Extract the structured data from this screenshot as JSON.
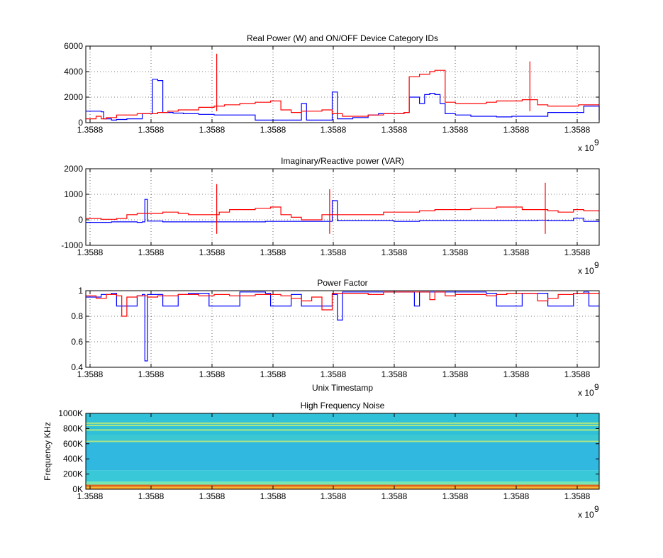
{
  "figure": {
    "xaxis_multiplier_base": "x 10",
    "xaxis_multiplier_exp": "9"
  },
  "colors": {
    "series_a": "#0000ff",
    "series_b": "#ff0000",
    "grid": "#000000",
    "axes": "#000000"
  },
  "chart_data": [
    {
      "type": "line",
      "title": "Real Power (W) and ON/OFF Device Category IDs",
      "xlabel": "",
      "ylabel": "",
      "xticks": [
        "1.3588",
        "1.3588",
        "1.3588",
        "1.3588",
        "1.3588",
        "1.3588",
        "1.3588",
        "1.3588",
        "1.3588"
      ],
      "yticks": [
        "0",
        "2000",
        "4000",
        "6000"
      ],
      "ylim": [
        0,
        6000
      ],
      "xlim": [
        0,
        100
      ],
      "grid": true,
      "series": [
        {
          "color": "#0000ff",
          "x": [
            0,
            3,
            3.5,
            5,
            6,
            8,
            10,
            11,
            12,
            13,
            14,
            15,
            17,
            18,
            19,
            20,
            22,
            25,
            28,
            30,
            33,
            36,
            38,
            40,
            42,
            43,
            44,
            47,
            48,
            49,
            50,
            52,
            55,
            57,
            60,
            62,
            63,
            64,
            65,
            66,
            67,
            68,
            69,
            70,
            72,
            75,
            80,
            83,
            85,
            88,
            90,
            93,
            95,
            97,
            97.5,
            99,
            100
          ],
          "y": [
            900,
            850,
            300,
            200,
            250,
            300,
            300,
            700,
            700,
            3400,
            3300,
            800,
            750,
            750,
            700,
            700,
            650,
            600,
            600,
            600,
            200,
            200,
            200,
            200,
            1500,
            200,
            200,
            200,
            2400,
            300,
            300,
            400,
            600,
            700,
            700,
            800,
            2000,
            2000,
            1500,
            2200,
            2300,
            2200,
            1500,
            700,
            600,
            500,
            450,
            500,
            500,
            500,
            800,
            800,
            800,
            1300,
            1300,
            1300,
            200
          ]
        },
        {
          "color": "#ff0000",
          "x": [
            0,
            1,
            2,
            3,
            4,
            6,
            8,
            10,
            12,
            14,
            16,
            18,
            20,
            22,
            25,
            27,
            30,
            33,
            36,
            38,
            40,
            42,
            44,
            46,
            48,
            50,
            52,
            55,
            58,
            60,
            62,
            63,
            65,
            67,
            68,
            70,
            72,
            75,
            78,
            80,
            82,
            85,
            88,
            90,
            92,
            94,
            96,
            98,
            100
          ],
          "y": [
            300,
            300,
            500,
            300,
            400,
            600,
            600,
            700,
            700,
            800,
            900,
            1000,
            1000,
            1200,
            1300,
            1400,
            1500,
            1600,
            1700,
            1000,
            800,
            900,
            900,
            1000,
            700,
            500,
            500,
            600,
            700,
            700,
            800,
            3600,
            3800,
            4000,
            4100,
            1600,
            1500,
            1500,
            1600,
            1700,
            1700,
            1800,
            1400,
            1300,
            1300,
            1300,
            1400,
            1400,
            1400
          ]
        }
      ],
      "spikes": [
        {
          "series": 1,
          "x": 25.5,
          "y": 5400
        },
        {
          "series": 1,
          "x": 86.5,
          "y": 4800
        }
      ]
    },
    {
      "type": "line",
      "title": "Imaginary/Reactive power (VAR)",
      "xlabel": "",
      "ylabel": "",
      "xticks": [
        "1.3588",
        "1.3588",
        "1.3588",
        "1.3588",
        "1.3588",
        "1.3588",
        "1.3588",
        "1.3588",
        "1.3588"
      ],
      "yticks": [
        "-1000",
        "0",
        "1000",
        "2000"
      ],
      "ylim": [
        -1000,
        2000
      ],
      "xlim": [
        0,
        100
      ],
      "grid": true,
      "series": [
        {
          "color": "#0000ff",
          "x": [
            0,
            5,
            10,
            11,
            11.5,
            12,
            15,
            20,
            25,
            30,
            35,
            40,
            45,
            47,
            48,
            49,
            50,
            55,
            60,
            65,
            70,
            75,
            80,
            85,
            88,
            90,
            95,
            97,
            100
          ],
          "y": [
            -100,
            -80,
            -100,
            -80,
            800,
            -50,
            -80,
            -80,
            -80,
            -80,
            -60,
            -60,
            -60,
            -60,
            750,
            -40,
            -40,
            -40,
            -60,
            -40,
            -40,
            -40,
            -40,
            -40,
            -20,
            -40,
            60,
            -60,
            -80
          ]
        },
        {
          "color": "#ff0000",
          "x": [
            0,
            3,
            6,
            8,
            10,
            12,
            15,
            18,
            20,
            22,
            24,
            26,
            28,
            30,
            33,
            36,
            38,
            40,
            42,
            44,
            46,
            48,
            50,
            52,
            55,
            58,
            60,
            62,
            65,
            68,
            70,
            72,
            75,
            78,
            80,
            82,
            85,
            88,
            90,
            92,
            95,
            97,
            100
          ],
          "y": [
            50,
            20,
            50,
            200,
            250,
            250,
            300,
            250,
            200,
            200,
            200,
            300,
            400,
            400,
            450,
            500,
            200,
            100,
            0,
            0,
            200,
            200,
            200,
            200,
            200,
            300,
            300,
            300,
            350,
            400,
            400,
            400,
            450,
            450,
            500,
            500,
            400,
            400,
            350,
            300,
            400,
            350,
            350
          ]
        }
      ],
      "spikes": [
        {
          "series": 1,
          "x": 25.5,
          "y": 1400
        },
        {
          "series": 1,
          "x": 47.5,
          "y": 1200
        },
        {
          "series": 1,
          "x": 89.5,
          "y": 1450
        }
      ]
    },
    {
      "type": "line",
      "title": "Power Factor",
      "xlabel": "Unix Timestamp",
      "ylabel": "",
      "xticks": [
        "1.3588",
        "1.3588",
        "1.3588",
        "1.3588",
        "1.3588",
        "1.3588",
        "1.3588",
        "1.3588",
        "1.3588"
      ],
      "yticks": [
        "0.4",
        "0.6",
        "0.8",
        "1"
      ],
      "ylim": [
        0.4,
        1.0
      ],
      "xlim": [
        0,
        100
      ],
      "grid": true,
      "series": [
        {
          "color": "#0000ff",
          "x": [
            0,
            3,
            5,
            6,
            8,
            10,
            11,
            11.5,
            12,
            14,
            15,
            17,
            18,
            20,
            23,
            24,
            25,
            28,
            30,
            35,
            36,
            38,
            40,
            42,
            44,
            46,
            48,
            49,
            50,
            55,
            60,
            63,
            64,
            65,
            70,
            75,
            78,
            80,
            85,
            88,
            90,
            92,
            95,
            97,
            98,
            100
          ],
          "y": [
            0.95,
            0.97,
            0.98,
            0.88,
            0.88,
            0.96,
            0.97,
            0.45,
            0.97,
            0.97,
            0.88,
            0.88,
            0.97,
            0.98,
            0.98,
            0.88,
            0.88,
            0.88,
            0.99,
            0.98,
            0.88,
            0.88,
            0.97,
            0.88,
            0.88,
            0.88,
            0.97,
            0.77,
            0.99,
            0.99,
            0.99,
            0.99,
            0.88,
            0.99,
            0.99,
            0.99,
            0.98,
            0.88,
            0.98,
            0.98,
            0.88,
            0.88,
            0.98,
            0.99,
            0.88,
            0.88
          ]
        },
        {
          "color": "#ff0000",
          "x": [
            0,
            2,
            4,
            6,
            7,
            8,
            10,
            12,
            14,
            16,
            18,
            20,
            22,
            25,
            28,
            30,
            33,
            36,
            38,
            40,
            42,
            44,
            46,
            48,
            50,
            52,
            55,
            58,
            60,
            62,
            65,
            67,
            68,
            70,
            72,
            75,
            78,
            80,
            82,
            85,
            88,
            90,
            92,
            95,
            97,
            100
          ],
          "y": [
            0.96,
            0.94,
            0.97,
            0.96,
            0.8,
            0.95,
            0.96,
            0.95,
            0.96,
            0.96,
            0.97,
            0.97,
            0.96,
            0.97,
            0.96,
            0.96,
            0.97,
            0.97,
            0.96,
            0.94,
            0.92,
            0.95,
            0.85,
            0.98,
            0.98,
            0.98,
            0.97,
            0.99,
            0.99,
            0.99,
            0.99,
            0.93,
            0.99,
            0.96,
            0.97,
            0.97,
            0.96,
            0.97,
            0.98,
            0.98,
            0.92,
            0.94,
            0.97,
            0.98,
            0.98,
            0.98
          ]
        }
      ]
    },
    {
      "type": "heatmap",
      "title": "High Frequency Noise",
      "xlabel": "",
      "ylabel": "Frequency KHz",
      "xticks": [
        "1.3588",
        "1.3588",
        "1.3588",
        "1.3588",
        "1.3588",
        "1.3588",
        "1.3588",
        "1.3588",
        "1.3588"
      ],
      "yticks": [
        "0K",
        "200K",
        "400K",
        "600K",
        "800K",
        "1000K"
      ],
      "ylim": [
        0,
        1000
      ],
      "xlim": [
        0,
        100
      ],
      "grid": false,
      "bands": [
        {
          "y": 0,
          "h": 15,
          "color": "#ffcc00"
        },
        {
          "y": 15,
          "h": 20,
          "color": "#e8f050"
        },
        {
          "y": 35,
          "h": 25,
          "color": "#40e0c0"
        },
        {
          "y": 60,
          "h": 40,
          "color": "#78e8b0"
        },
        {
          "y": 100,
          "h": 150,
          "color": "#38c8d8"
        },
        {
          "y": 250,
          "h": 400,
          "color": "#30b8e0"
        },
        {
          "y": 650,
          "h": 60,
          "color": "#3cc8d0"
        },
        {
          "y": 710,
          "h": 290,
          "color": "#30c0d8"
        }
      ]
    }
  ]
}
